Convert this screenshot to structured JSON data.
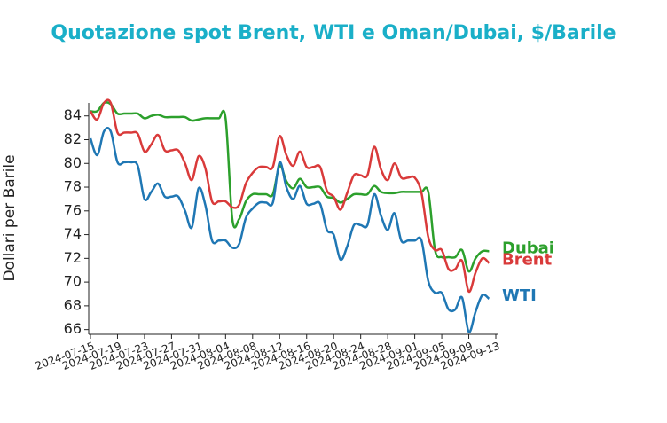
{
  "chart_data": {
    "type": "line",
    "title": "Quotazione spot Brent, WTI e Oman/Dubai, $/Barile",
    "y_label": "Dollari per Barile",
    "x": [
      "2024-07-15",
      "2024-07-16",
      "2024-07-17",
      "2024-07-18",
      "2024-07-19",
      "2024-07-20",
      "2024-07-21",
      "2024-07-22",
      "2024-07-23",
      "2024-07-24",
      "2024-07-25",
      "2024-07-26",
      "2024-07-27",
      "2024-07-28",
      "2024-07-29",
      "2024-07-30",
      "2024-07-31",
      "2024-08-01",
      "2024-08-02",
      "2024-08-03",
      "2024-08-04",
      "2024-08-05",
      "2024-08-06",
      "2024-08-07",
      "2024-08-08",
      "2024-08-09",
      "2024-08-10",
      "2024-08-11",
      "2024-08-12",
      "2024-08-13",
      "2024-08-14",
      "2024-08-15",
      "2024-08-16",
      "2024-08-17",
      "2024-08-18",
      "2024-08-19",
      "2024-08-20",
      "2024-08-21",
      "2024-08-22",
      "2024-08-23",
      "2024-08-24",
      "2024-08-25",
      "2024-08-26",
      "2024-08-27",
      "2024-08-28",
      "2024-08-29",
      "2024-08-30",
      "2024-08-31",
      "2024-09-01",
      "2024-09-02",
      "2024-09-03",
      "2024-09-04",
      "2024-09-05",
      "2024-09-06",
      "2024-09-07",
      "2024-09-08",
      "2024-09-09",
      "2024-09-10",
      "2024-09-11",
      "2024-09-12"
    ],
    "series": [
      {
        "name": "Dubai",
        "color": "#2ca02c",
        "values": [
          84.4,
          84.4,
          85.1,
          85.0,
          84.2,
          84.2,
          84.2,
          84.2,
          83.8,
          84.0,
          84.1,
          83.9,
          83.9,
          83.9,
          83.9,
          83.6,
          83.7,
          83.8,
          83.8,
          83.8,
          83.8,
          75.3,
          75.3,
          76.8,
          77.4,
          77.4,
          77.4,
          77.4,
          79.8,
          78.5,
          77.9,
          78.7,
          78.0,
          78.0,
          78.0,
          77.2,
          77.1,
          76.7,
          77.0,
          77.4,
          77.4,
          77.4,
          78.1,
          77.6,
          77.5,
          77.5,
          77.6,
          77.6,
          77.6,
          77.6,
          77.6,
          72.7,
          72.1,
          72.1,
          72.1,
          72.7,
          70.9,
          72.0,
          72.6,
          72.6
        ]
      },
      {
        "name": "Brent",
        "color": "#d93a3a",
        "values": [
          84.4,
          83.7,
          85.1,
          85.1,
          82.6,
          82.6,
          82.6,
          82.5,
          81.0,
          81.6,
          82.4,
          81.1,
          81.1,
          81.1,
          80.0,
          78.6,
          80.6,
          79.6,
          76.8,
          76.8,
          76.8,
          76.3,
          76.5,
          78.3,
          79.2,
          79.7,
          79.7,
          79.7,
          82.3,
          80.7,
          79.8,
          81.0,
          79.7,
          79.7,
          79.7,
          77.7,
          77.2,
          76.1,
          77.5,
          79.0,
          79.0,
          79.0,
          81.4,
          79.5,
          78.6,
          80.0,
          78.8,
          78.8,
          78.8,
          77.5,
          73.8,
          72.7,
          72.7,
          71.1,
          71.1,
          71.8,
          69.2,
          70.8,
          72.0,
          71.6
        ]
      },
      {
        "name": "WTI",
        "color": "#1f77b4",
        "values": [
          82.1,
          80.7,
          82.7,
          82.7,
          80.1,
          80.1,
          80.1,
          79.8,
          77.0,
          77.6,
          78.3,
          77.2,
          77.2,
          77.2,
          76.0,
          74.6,
          77.9,
          76.5,
          73.5,
          73.5,
          73.5,
          72.9,
          73.2,
          75.4,
          76.2,
          76.7,
          76.7,
          76.7,
          80.1,
          78.0,
          77.0,
          78.1,
          76.6,
          76.6,
          76.6,
          74.4,
          74.0,
          71.9,
          73.0,
          74.8,
          74.8,
          74.8,
          77.4,
          75.6,
          74.4,
          75.8,
          73.5,
          73.5,
          73.5,
          73.5,
          70.1,
          69.1,
          69.1,
          67.7,
          67.7,
          68.7,
          65.8,
          67.5,
          68.9,
          68.6
        ]
      }
    ],
    "xlim": [
      "2024-07-15",
      "2024-09-13"
    ],
    "xticks": [
      "2024-07-15",
      "2024-07-19",
      "2024-07-23",
      "2024-07-27",
      "2024-07-31",
      "2024-08-04",
      "2024-08-08",
      "2024-08-12",
      "2024-08-16",
      "2024-08-20",
      "2024-08-24",
      "2024-08-28",
      "2024-09-01",
      "2024-09-05",
      "2024-09-09",
      "2024-09-13"
    ],
    "ylim": [
      65.6,
      85.1
    ],
    "yticks": [
      66,
      68,
      70,
      72,
      74,
      76,
      78,
      80,
      82,
      84
    ]
  }
}
